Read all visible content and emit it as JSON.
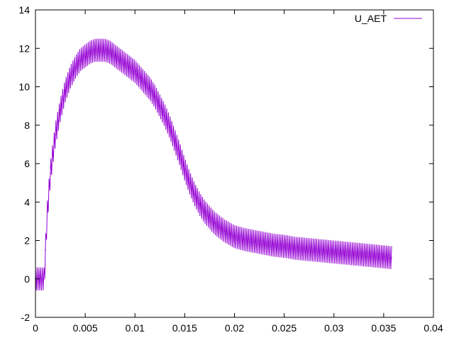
{
  "chart_data": {
    "type": "line",
    "title": "",
    "xlabel": "",
    "ylabel": "",
    "xlim": [
      0,
      0.04
    ],
    "ylim": [
      -2,
      14
    ],
    "xticks": [
      {
        "v": 0,
        "label": "0"
      },
      {
        "v": 0.005,
        "label": "0.005"
      },
      {
        "v": 0.01,
        "label": "0.01"
      },
      {
        "v": 0.015,
        "label": "0.015"
      },
      {
        "v": 0.02,
        "label": "0.02"
      },
      {
        "v": 0.025,
        "label": "0.025"
      },
      {
        "v": 0.03,
        "label": "0.03"
      },
      {
        "v": 0.035,
        "label": "0.035"
      },
      {
        "v": 0.04,
        "label": "0.04"
      }
    ],
    "yticks": [
      {
        "v": -2,
        "label": "-2"
      },
      {
        "v": 0,
        "label": "0"
      },
      {
        "v": 2,
        "label": "2"
      },
      {
        "v": 4,
        "label": "4"
      },
      {
        "v": 6,
        "label": "6"
      },
      {
        "v": 8,
        "label": "8"
      },
      {
        "v": 10,
        "label": "10"
      },
      {
        "v": 12,
        "label": "12"
      },
      {
        "v": 14,
        "label": "14"
      }
    ],
    "grid": false,
    "legend_position": "top-right",
    "series": [
      {
        "name": "U_AET",
        "color": "#9400d3",
        "band": 0.6,
        "x": [
          0,
          0.0005,
          0.0009,
          0.001,
          0.0012,
          0.0015,
          0.002,
          0.0025,
          0.003,
          0.0035,
          0.004,
          0.0045,
          0.005,
          0.0055,
          0.006,
          0.0065,
          0.007,
          0.0075,
          0.008,
          0.0085,
          0.009,
          0.0095,
          0.01,
          0.0105,
          0.011,
          0.0115,
          0.012,
          0.0125,
          0.013,
          0.0135,
          0.014,
          0.0145,
          0.015,
          0.0155,
          0.016,
          0.0165,
          0.017,
          0.0175,
          0.018,
          0.0185,
          0.019,
          0.0195,
          0.02,
          0.021,
          0.022,
          0.023,
          0.024,
          0.025,
          0.026,
          0.027,
          0.028,
          0.029,
          0.03,
          0.031,
          0.032,
          0.033,
          0.034,
          0.035,
          0.0358
        ],
        "values": [
          0,
          0,
          0,
          1.5,
          3.5,
          5.5,
          7.5,
          8.8,
          9.8,
          10.5,
          11.0,
          11.4,
          11.6,
          11.8,
          11.9,
          11.9,
          11.9,
          11.8,
          11.6,
          11.4,
          11.2,
          11.0,
          10.8,
          10.5,
          10.2,
          9.9,
          9.5,
          9.0,
          8.5,
          7.9,
          7.2,
          6.5,
          5.7,
          5.0,
          4.4,
          3.9,
          3.5,
          3.2,
          2.9,
          2.7,
          2.5,
          2.35,
          2.2,
          2.05,
          1.95,
          1.85,
          1.75,
          1.7,
          1.6,
          1.55,
          1.5,
          1.45,
          1.4,
          1.35,
          1.3,
          1.25,
          1.2,
          1.15,
          1.1
        ]
      }
    ]
  }
}
